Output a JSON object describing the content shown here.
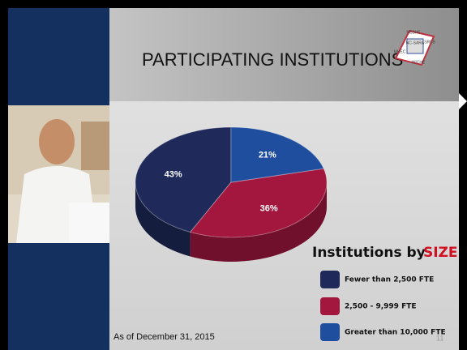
{
  "chart_data": {
    "type": "pie",
    "title": "PARTICIPATING INSTITUTIONS",
    "categories": [
      "Fewer than 2,500 FTE",
      "2,500 - 9,999 FTE",
      "Greater than 10,000 FTE"
    ],
    "values": [
      43,
      36,
      21
    ],
    "value_labels": [
      "43%",
      "36%",
      "21%"
    ],
    "colors": [
      "#1f2a5a",
      "#a3173f",
      "#1f4e9e"
    ],
    "legend_title": "Institutions by",
    "legend_title_emphasis": "SIZE",
    "footnote": "As of December 31, 2015",
    "page_number": "11",
    "logo": {
      "center": "NC-SARA",
      "top": "NEBHE",
      "right": "SREB",
      "bottom": "WICHE",
      "left": "MHEC"
    }
  }
}
